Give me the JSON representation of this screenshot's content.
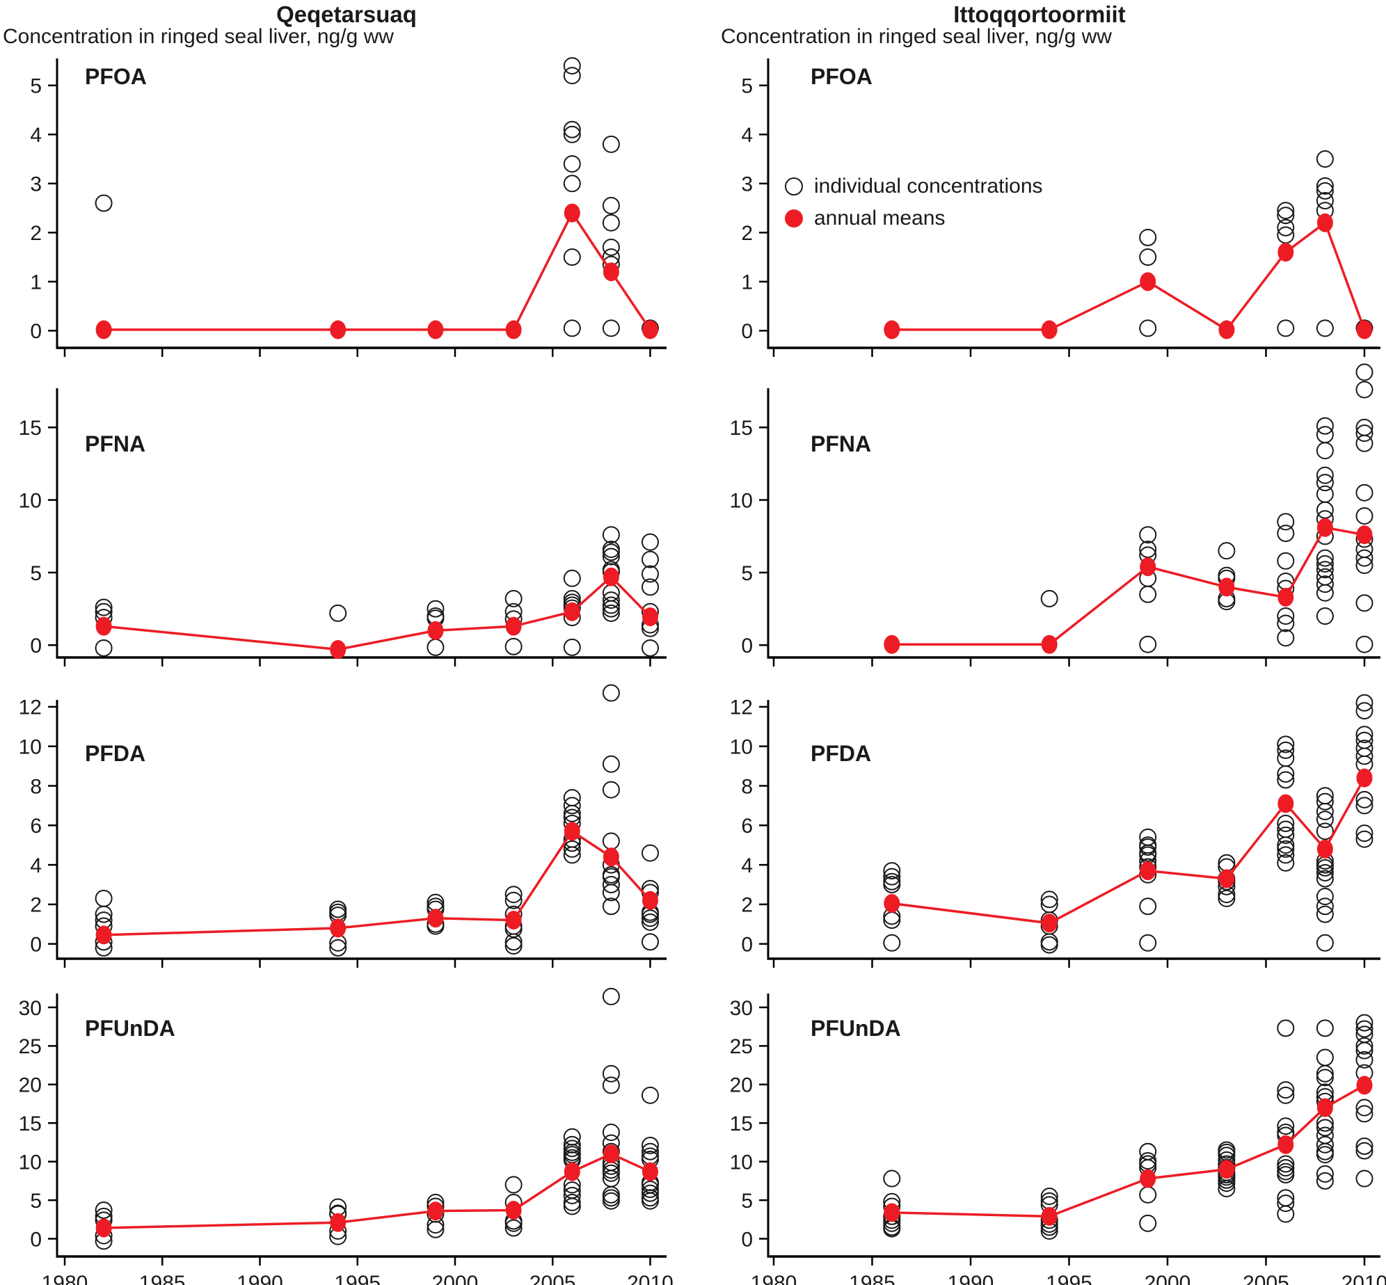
{
  "figure": {
    "columns": [
      {
        "id": "qeqetarsuaq",
        "title": "Qeqetarsuaq",
        "y_caption": "Concentration in ringed seal liver, ng/g ww"
      },
      {
        "id": "ittoqqortoormiit",
        "title": "Ittoqqortoormiit",
        "y_caption": "Concentration in ringed seal liver, ng/g ww"
      }
    ],
    "legend": {
      "individual_label": "individual concentrations",
      "means_label": "annual means"
    },
    "colors": {
      "mean_red": "#ed1c24",
      "individual_stroke": "#1a1a1a",
      "axis": "#000000"
    },
    "x_axis": {
      "ticks": [
        1980,
        1985,
        1990,
        1995,
        2000,
        2005,
        2010
      ]
    }
  },
  "chart_data": [
    {
      "type": "scatter",
      "location": "Qeqetarsuaq",
      "compound": "PFOA",
      "col": 0,
      "row": 0,
      "ylim": [
        -0.35,
        5.55
      ],
      "y_ticks": [
        0,
        1,
        2,
        3,
        4,
        5
      ],
      "x_tick_labels_visible": false,
      "individuals": [
        {
          "year": 1982,
          "values": [
            2.6
          ]
        },
        {
          "year": 2006,
          "values": [
            5.4,
            5.2,
            4.1,
            4.0,
            3.4,
            3.0,
            1.5,
            0.05
          ]
        },
        {
          "year": 2008,
          "values": [
            3.8,
            2.55,
            2.2,
            1.7,
            1.5,
            1.35,
            0.05
          ]
        },
        {
          "year": 2010,
          "values": [
            0.05
          ]
        }
      ],
      "annual_means": [
        {
          "year": 1982,
          "value": 0.02
        },
        {
          "year": 1994,
          "value": 0.02
        },
        {
          "year": 1999,
          "value": 0.02
        },
        {
          "year": 2003,
          "value": 0.02
        },
        {
          "year": 2006,
          "value": 2.4
        },
        {
          "year": 2008,
          "value": 1.2
        },
        {
          "year": 2010,
          "value": 0.02
        }
      ]
    },
    {
      "type": "scatter",
      "location": "Ittoqqortoormiit",
      "compound": "PFOA",
      "col": 1,
      "row": 0,
      "ylim": [
        -0.35,
        5.55
      ],
      "y_ticks": [
        0,
        1,
        2,
        3,
        4,
        5
      ],
      "x_tick_labels_visible": false,
      "has_legend": true,
      "individuals": [
        {
          "year": 1999,
          "values": [
            1.9,
            1.5,
            0.05
          ]
        },
        {
          "year": 2006,
          "values": [
            2.45,
            2.35,
            2.1,
            1.95,
            0.05
          ]
        },
        {
          "year": 2008,
          "values": [
            3.5,
            2.95,
            2.85,
            2.65,
            2.45,
            0.05
          ]
        },
        {
          "year": 2010,
          "values": [
            0.05
          ]
        }
      ],
      "annual_means": [
        {
          "year": 1986,
          "value": 0.02
        },
        {
          "year": 1994,
          "value": 0.02
        },
        {
          "year": 1999,
          "value": 1.0
        },
        {
          "year": 2003,
          "value": 0.02
        },
        {
          "year": 2006,
          "value": 1.6
        },
        {
          "year": 2008,
          "value": 2.2
        },
        {
          "year": 2010,
          "value": 0.02
        }
      ]
    },
    {
      "type": "scatter",
      "location": "Qeqetarsuaq",
      "compound": "PFNA",
      "col": 0,
      "row": 1,
      "ylim": [
        -0.85,
        17.7
      ],
      "y_ticks": [
        0,
        5,
        10,
        15
      ],
      "x_tick_labels_visible": false,
      "individuals": [
        {
          "year": 1982,
          "values": [
            2.6,
            2.3,
            1.9,
            -0.2
          ]
        },
        {
          "year": 1994,
          "values": [
            2.2
          ]
        },
        {
          "year": 1999,
          "values": [
            2.5,
            2.0,
            1.85,
            -0.15
          ]
        },
        {
          "year": 2003,
          "values": [
            3.2,
            2.3,
            1.8,
            -0.1
          ]
        },
        {
          "year": 2006,
          "values": [
            4.6,
            3.2,
            2.95,
            2.75,
            2.55,
            1.9,
            -0.15
          ]
        },
        {
          "year": 2008,
          "values": [
            7.6,
            6.6,
            6.4,
            6.1,
            5.2,
            5.05,
            3.6,
            3.1,
            2.75,
            2.5,
            2.2
          ]
        },
        {
          "year": 2010,
          "values": [
            7.1,
            5.9,
            4.9,
            4.0,
            2.3,
            1.4,
            1.15,
            -0.2
          ]
        }
      ],
      "annual_means": [
        {
          "year": 1982,
          "value": 1.3
        },
        {
          "year": 1994,
          "value": -0.3
        },
        {
          "year": 1999,
          "value": 1.0
        },
        {
          "year": 2003,
          "value": 1.3
        },
        {
          "year": 2006,
          "value": 2.3
        },
        {
          "year": 2008,
          "value": 4.7
        },
        {
          "year": 2010,
          "value": 1.95
        }
      ]
    },
    {
      "type": "scatter",
      "location": "Ittoqqortoormiit",
      "compound": "PFNA",
      "col": 1,
      "row": 1,
      "ylim": [
        -0.85,
        17.7
      ],
      "y_ticks": [
        0,
        5,
        10,
        15
      ],
      "x_tick_labels_visible": false,
      "individuals": [
        {
          "year": 1994,
          "values": [
            3.2
          ]
        },
        {
          "year": 1999,
          "values": [
            7.6,
            6.6,
            6.2,
            4.6,
            3.5,
            0.05
          ]
        },
        {
          "year": 2003,
          "values": [
            6.5,
            4.8,
            4.6,
            3.2,
            3.0
          ]
        },
        {
          "year": 2006,
          "values": [
            8.5,
            7.7,
            5.8,
            4.4,
            3.9,
            2.0,
            1.5,
            0.5
          ]
        },
        {
          "year": 2008,
          "values": [
            15.1,
            14.5,
            13.4,
            11.7,
            11.2,
            10.4,
            9.3,
            8.7,
            7.5,
            6.0,
            5.6,
            5.2,
            4.7,
            4.2,
            3.6,
            2.0
          ]
        },
        {
          "year": 2010,
          "values": [
            18.8,
            17.6,
            15.0,
            14.6,
            13.9,
            10.5,
            8.9,
            7.3,
            6.6,
            6.0,
            5.5,
            2.9,
            0.05
          ]
        }
      ],
      "annual_means": [
        {
          "year": 1986,
          "value": 0.05
        },
        {
          "year": 1994,
          "value": 0.05
        },
        {
          "year": 1999,
          "value": 5.4
        },
        {
          "year": 2003,
          "value": 4.0
        },
        {
          "year": 2006,
          "value": 3.3
        },
        {
          "year": 2008,
          "value": 8.1
        },
        {
          "year": 2010,
          "value": 7.6
        }
      ]
    },
    {
      "type": "scatter",
      "location": "Qeqetarsuaq",
      "compound": "PFDA",
      "col": 0,
      "row": 2,
      "ylim": [
        -0.75,
        12.35
      ],
      "y_ticks": [
        0,
        2,
        4,
        6,
        8,
        10,
        12
      ],
      "x_tick_labels_visible": false,
      "individuals": [
        {
          "year": 1982,
          "values": [
            2.3,
            1.5,
            1.2,
            0.9,
            0.1,
            -0.2
          ]
        },
        {
          "year": 1994,
          "values": [
            1.75,
            1.6,
            1.45,
            0.05,
            -0.2
          ]
        },
        {
          "year": 1999,
          "values": [
            2.1,
            1.9,
            1.75,
            1.0,
            0.9
          ]
        },
        {
          "year": 2003,
          "values": [
            2.5,
            2.2,
            1.5,
            0.9,
            0.75,
            0.1,
            -0.1
          ]
        },
        {
          "year": 2006,
          "values": [
            7.4,
            7.0,
            6.6,
            6.4,
            6.1,
            5.3,
            5.1,
            4.8,
            4.5
          ]
        },
        {
          "year": 2008,
          "values": [
            12.7,
            9.1,
            7.8,
            5.2,
            4.0,
            3.5,
            3.4,
            3.0,
            2.6,
            1.9
          ]
        },
        {
          "year": 2010,
          "values": [
            4.6,
            2.8,
            2.6,
            1.6,
            1.5,
            1.3,
            1.1,
            0.1
          ]
        }
      ],
      "annual_means": [
        {
          "year": 1982,
          "value": 0.45
        },
        {
          "year": 1994,
          "value": 0.8
        },
        {
          "year": 1999,
          "value": 1.3
        },
        {
          "year": 2003,
          "value": 1.2
        },
        {
          "year": 2006,
          "value": 5.7
        },
        {
          "year": 2008,
          "value": 4.4
        },
        {
          "year": 2010,
          "value": 2.2
        }
      ]
    },
    {
      "type": "scatter",
      "location": "Ittoqqortoormiit",
      "compound": "PFDA",
      "col": 1,
      "row": 2,
      "ylim": [
        -0.75,
        12.35
      ],
      "y_ticks": [
        0,
        2,
        4,
        6,
        8,
        10,
        12
      ],
      "x_tick_labels_visible": false,
      "individuals": [
        {
          "year": 1986,
          "values": [
            3.7,
            3.4,
            3.15,
            3.0,
            1.4,
            1.2,
            0.05
          ]
        },
        {
          "year": 1994,
          "values": [
            2.25,
            2.0,
            1.2,
            0.9,
            0.1,
            -0.05
          ]
        },
        {
          "year": 1999,
          "values": [
            5.4,
            5.0,
            4.9,
            4.6,
            4.5,
            4.2,
            3.9,
            3.5,
            1.9,
            0.05
          ]
        },
        {
          "year": 2003,
          "values": [
            4.1,
            3.9,
            3.3,
            3.15,
            2.9,
            2.5,
            2.3
          ]
        },
        {
          "year": 2006,
          "values": [
            10.1,
            9.8,
            9.4,
            8.6,
            8.3,
            6.1,
            5.8,
            5.5,
            5.0,
            4.8,
            4.5,
            4.1
          ]
        },
        {
          "year": 2008,
          "values": [
            7.5,
            7.2,
            6.7,
            6.3,
            5.7,
            4.2,
            4.0,
            3.85,
            3.6,
            3.3,
            2.4,
            1.9,
            1.5,
            0.05
          ]
        },
        {
          "year": 2010,
          "values": [
            12.2,
            11.8,
            10.6,
            10.3,
            9.9,
            9.5,
            9.1,
            7.3,
            7.0,
            5.6,
            5.3
          ]
        }
      ],
      "annual_means": [
        {
          "year": 1986,
          "value": 2.05
        },
        {
          "year": 1994,
          "value": 1.05
        },
        {
          "year": 1999,
          "value": 3.7
        },
        {
          "year": 2003,
          "value": 3.3
        },
        {
          "year": 2006,
          "value": 7.1
        },
        {
          "year": 2008,
          "value": 4.8
        },
        {
          "year": 2010,
          "value": 8.4
        }
      ]
    },
    {
      "type": "scatter",
      "location": "Qeqetarsuaq",
      "compound": "PFUnDA",
      "col": 0,
      "row": 3,
      "ylim": [
        -2.3,
        31.8
      ],
      "y_ticks": [
        0,
        5,
        10,
        15,
        20,
        25,
        30
      ],
      "x_tick_labels_visible": true,
      "individuals": [
        {
          "year": 1982,
          "values": [
            3.7,
            2.9,
            2.4,
            0.4,
            -0.3
          ]
        },
        {
          "year": 1994,
          "values": [
            4.1,
            3.3,
            3.2,
            1.0,
            0.3
          ]
        },
        {
          "year": 1999,
          "values": [
            4.7,
            4.2,
            3.2,
            1.8,
            1.2
          ]
        },
        {
          "year": 2003,
          "values": [
            7.0,
            4.7,
            2.3,
            2.0,
            1.4
          ]
        },
        {
          "year": 2006,
          "values": [
            13.2,
            12.2,
            11.7,
            11.2,
            10.9,
            10.5,
            10.2,
            7.0,
            6.3,
            5.6,
            4.7,
            4.2
          ]
        },
        {
          "year": 2008,
          "values": [
            31.4,
            21.4,
            19.9,
            13.8,
            12.4,
            11.3,
            9.9,
            9.4,
            8.9,
            8.5,
            7.8,
            5.7,
            5.3,
            4.9
          ]
        },
        {
          "year": 2010,
          "values": [
            18.6,
            12.1,
            11.3,
            10.7,
            10.3,
            7.3,
            7.0,
            6.4,
            5.9,
            5.3,
            4.9
          ]
        }
      ],
      "annual_means": [
        {
          "year": 1982,
          "value": 1.4
        },
        {
          "year": 1994,
          "value": 2.1
        },
        {
          "year": 1999,
          "value": 3.6
        },
        {
          "year": 2003,
          "value": 3.7
        },
        {
          "year": 2006,
          "value": 8.7
        },
        {
          "year": 2008,
          "value": 11.0
        },
        {
          "year": 2010,
          "value": 8.7
        }
      ]
    },
    {
      "type": "scatter",
      "location": "Ittoqqortoormiit",
      "compound": "PFUnDA",
      "col": 1,
      "row": 3,
      "ylim": [
        -2.3,
        31.8
      ],
      "y_ticks": [
        0,
        5,
        10,
        15,
        20,
        25,
        30
      ],
      "x_tick_labels_visible": true,
      "individuals": [
        {
          "year": 1986,
          "values": [
            7.8,
            4.8,
            4.2,
            2.9,
            2.4,
            2.0,
            1.5,
            1.3
          ]
        },
        {
          "year": 1994,
          "values": [
            5.5,
            4.9,
            4.4,
            2.4,
            1.9,
            1.5,
            1.0
          ]
        },
        {
          "year": 1999,
          "values": [
            11.3,
            10.1,
            9.7,
            9.2,
            5.7,
            2.0
          ]
        },
        {
          "year": 2003,
          "values": [
            11.5,
            11.2,
            10.8,
            10.2,
            9.7,
            9.2,
            8.6,
            8.3,
            8.0,
            7.6,
            7.2,
            6.5
          ]
        },
        {
          "year": 2006,
          "values": [
            27.3,
            19.3,
            18.6,
            14.6,
            13.8,
            13.4,
            9.7,
            9.2,
            8.7,
            8.3,
            5.3,
            4.6,
            3.2
          ]
        },
        {
          "year": 2008,
          "values": [
            27.3,
            23.5,
            21.4,
            20.9,
            19.0,
            18.4,
            17.8,
            15.0,
            14.4,
            13.4,
            12.2,
            11.3,
            10.9,
            8.4,
            7.5
          ]
        },
        {
          "year": 2010,
          "values": [
            28.0,
            27.2,
            26.5,
            25.0,
            24.4,
            23.2,
            21.5,
            17.0,
            16.2,
            12.0,
            11.4,
            7.8
          ]
        }
      ],
      "annual_means": [
        {
          "year": 1986,
          "value": 3.4
        },
        {
          "year": 1994,
          "value": 2.9
        },
        {
          "year": 1999,
          "value": 7.8
        },
        {
          "year": 2003,
          "value": 9.0
        },
        {
          "year": 2006,
          "value": 12.2
        },
        {
          "year": 2008,
          "value": 17.0
        },
        {
          "year": 2010,
          "value": 19.9
        }
      ]
    }
  ]
}
